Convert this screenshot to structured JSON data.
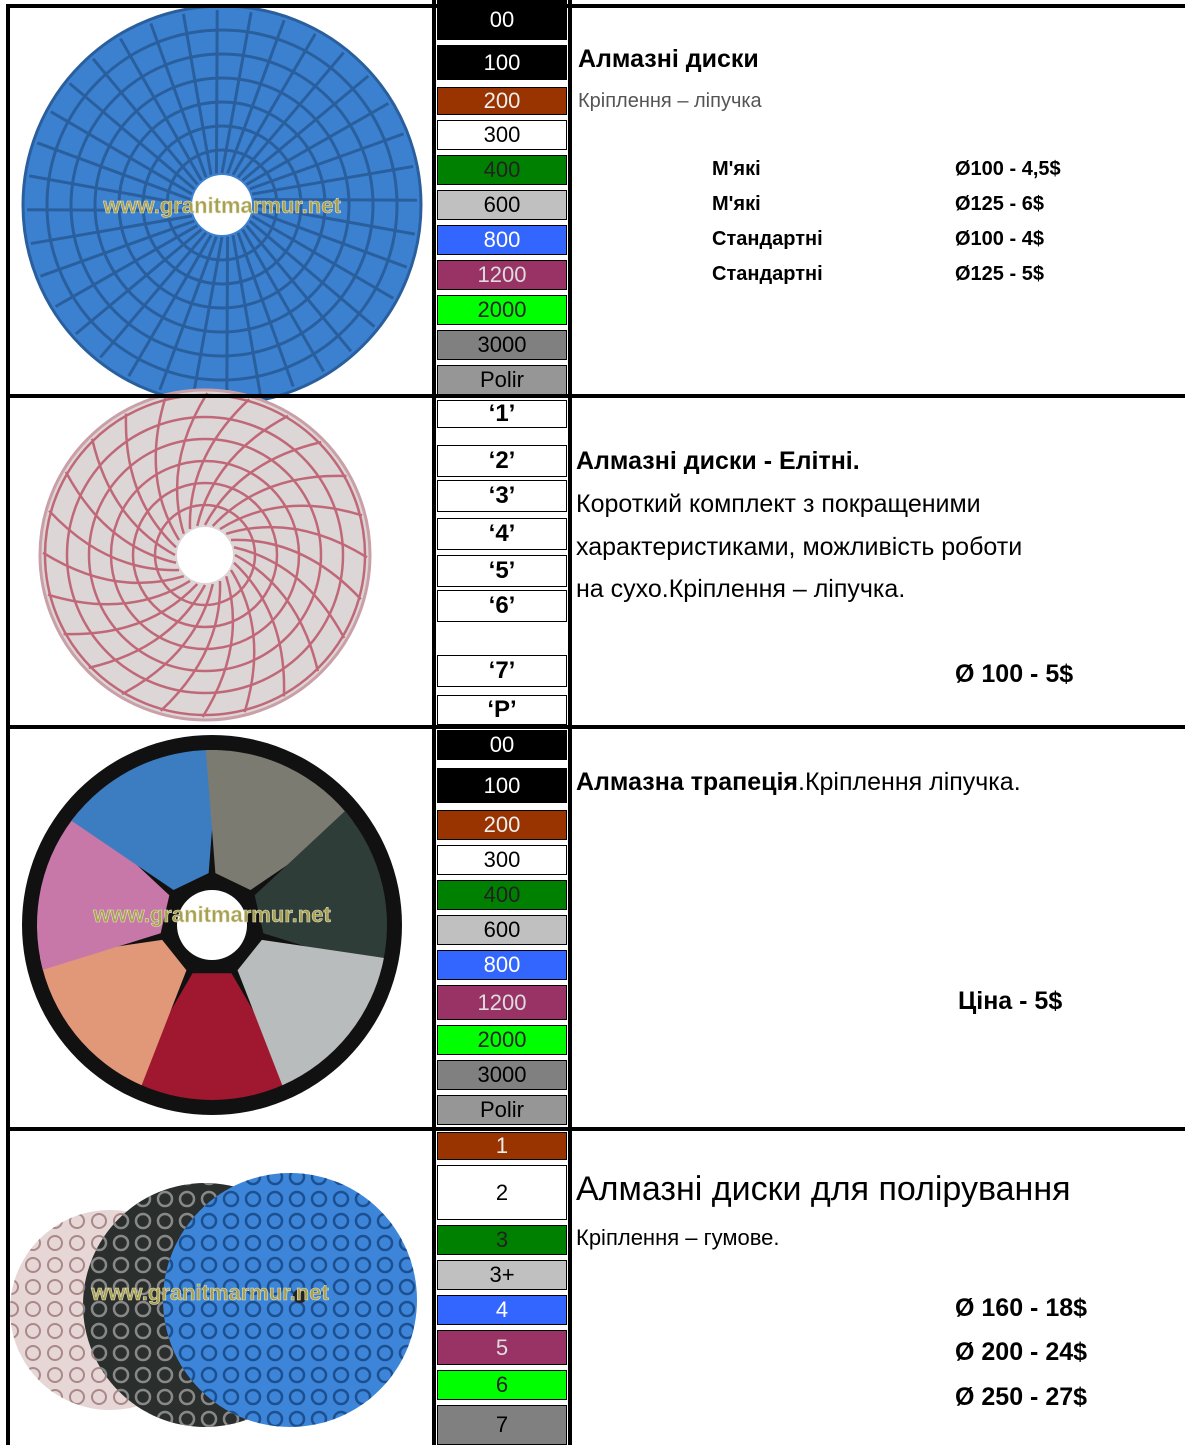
{
  "rows": [
    {
      "watermark": "www.granitmarmur.net",
      "grits": [
        "00",
        "100",
        "200",
        "300",
        "400",
        "600",
        "800",
        "1200",
        "2000",
        "3000",
        "Polir"
      ],
      "title": "Алмазні диски",
      "subtitle": "Кріплення – ліпучка",
      "prices": [
        {
          "type": "М'які",
          "price": "Ø100 - 4,5$"
        },
        {
          "type": "М'які",
          "price": "Ø125 - 6$"
        },
        {
          "type": "Стандартні",
          "price": "Ø100 - 4$"
        },
        {
          "type": "Стандартні",
          "price": "Ø125 - 5$"
        }
      ]
    },
    {
      "grits": [
        "‘1’",
        "‘2’",
        "‘3’",
        "‘4’",
        "‘5’",
        "‘6’",
        "‘7’",
        "‘P’"
      ],
      "title": "Алмазні диски - Елітні.",
      "description": [
        "Короткий комплект  з покращеними",
        "характеристиками, можливість роботи",
        "на сухо.Кріплення – ліпучка."
      ],
      "price": "Ø 100 - 5$"
    },
    {
      "watermark": "www.granitmarmur.net",
      "grits": [
        "00",
        "100",
        "200",
        "300",
        "400",
        "600",
        "800",
        "1200",
        "2000",
        "3000",
        "Polir"
      ],
      "title": "Алмазна трапеція",
      "title_rest": ".Кріплення ліпучка.",
      "price": "Ціна - 5$"
    },
    {
      "watermark": "www.granitmarmur.net",
      "grits": [
        "1",
        "2",
        "3",
        "3+",
        "4",
        "5",
        "6",
        "7"
      ],
      "title": "Алмазні диски для полірування",
      "subtitle": "Кріплення – гумове.",
      "prices": [
        "Ø 160 - 18$",
        "Ø 200 - 24$",
        "Ø 250 - 27$"
      ]
    }
  ]
}
